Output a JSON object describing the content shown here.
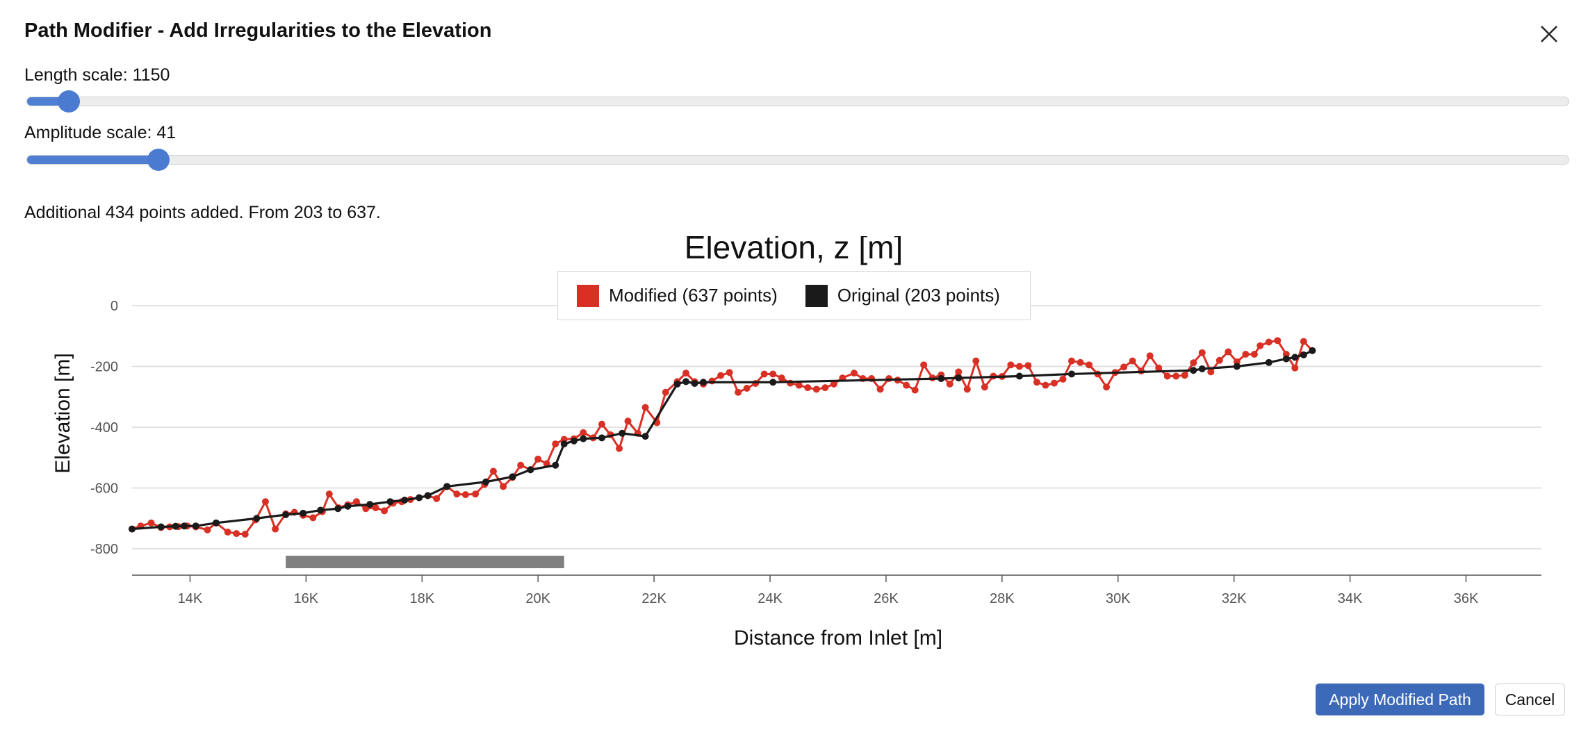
{
  "dialog": {
    "title": "Path Modifier - Add Irregularities to the Elevation",
    "close_icon": "close-icon"
  },
  "sliders": {
    "length_label": "Length scale: 1150",
    "length_fraction": 0.027,
    "amplitude_label": "Amplitude scale: 41",
    "amplitude_fraction": 0.085
  },
  "info": {
    "text": "Additional 434 points added. From 203 to 637."
  },
  "buttons": {
    "apply_label": "Apply Modified Path",
    "cancel_label": "Cancel"
  },
  "colors": {
    "modified": "#d93025",
    "original": "#1a1a1a",
    "accent": "#3d6ab8",
    "navigator": "#808080"
  },
  "chart_data": {
    "type": "line",
    "title": "Elevation, z [m]",
    "xlabel": "Distance from Inlet [m]",
    "ylabel": "Elevation [m]",
    "xlim": [
      13000,
      37300
    ],
    "ylim": [
      -800,
      0
    ],
    "x_ticks": [
      14000,
      16000,
      18000,
      20000,
      22000,
      24000,
      26000,
      28000,
      30000,
      32000,
      34000,
      36000
    ],
    "x_tick_labels": [
      "14K",
      "16K",
      "18K",
      "20K",
      "22K",
      "24K",
      "26K",
      "28K",
      "30K",
      "32K",
      "34K",
      "36K"
    ],
    "y_ticks": [
      0,
      -200,
      -400,
      -600,
      -800
    ],
    "y_tick_labels": [
      "0",
      "-200",
      "-400",
      "-600",
      "-800"
    ],
    "grid": true,
    "legend_position": "top-center",
    "navigator_range": [
      15650,
      20450
    ],
    "series": [
      {
        "name": "Modified (637 points)",
        "color": "#d93025",
        "points": [
          [
            13000,
            -735
          ],
          [
            13150,
            -725
          ],
          [
            13330,
            -715
          ],
          [
            13500,
            -730
          ],
          [
            13650,
            -728
          ],
          [
            13800,
            -727
          ],
          [
            13950,
            -725
          ],
          [
            14100,
            -728
          ],
          [
            14300,
            -738
          ],
          [
            14450,
            -715
          ],
          [
            14650,
            -745
          ],
          [
            14800,
            -750
          ],
          [
            14950,
            -752
          ],
          [
            15130,
            -705
          ],
          [
            15300,
            -645
          ],
          [
            15470,
            -735
          ],
          [
            15650,
            -685
          ],
          [
            15800,
            -680
          ],
          [
            15950,
            -690
          ],
          [
            16120,
            -698
          ],
          [
            16280,
            -678
          ],
          [
            16400,
            -620
          ],
          [
            16560,
            -665
          ],
          [
            16720,
            -655
          ],
          [
            16870,
            -645
          ],
          [
            17030,
            -668
          ],
          [
            17200,
            -665
          ],
          [
            17350,
            -675
          ],
          [
            17500,
            -650
          ],
          [
            17650,
            -645
          ],
          [
            17800,
            -638
          ],
          [
            17950,
            -632
          ],
          [
            18100,
            -625
          ],
          [
            18250,
            -635
          ],
          [
            18430,
            -595
          ],
          [
            18600,
            -620
          ],
          [
            18750,
            -622
          ],
          [
            18920,
            -620
          ],
          [
            19080,
            -588
          ],
          [
            19230,
            -545
          ],
          [
            19400,
            -595
          ],
          [
            19560,
            -565
          ],
          [
            19700,
            -525
          ],
          [
            19870,
            -540
          ],
          [
            20000,
            -505
          ],
          [
            20150,
            -520
          ],
          [
            20300,
            -455
          ],
          [
            20450,
            -440
          ],
          [
            20620,
            -438
          ],
          [
            20780,
            -418
          ],
          [
            20950,
            -435
          ],
          [
            21100,
            -390
          ],
          [
            21250,
            -425
          ],
          [
            21400,
            -470
          ],
          [
            21550,
            -380
          ],
          [
            21720,
            -420
          ],
          [
            21850,
            -335
          ],
          [
            22050,
            -385
          ],
          [
            22200,
            -285
          ],
          [
            22400,
            -250
          ],
          [
            22550,
            -222
          ],
          [
            22700,
            -250
          ],
          [
            22850,
            -258
          ],
          [
            23000,
            -248
          ],
          [
            23150,
            -230
          ],
          [
            23300,
            -220
          ],
          [
            23450,
            -285
          ],
          [
            23600,
            -272
          ],
          [
            23750,
            -256
          ],
          [
            23900,
            -225
          ],
          [
            24050,
            -225
          ],
          [
            24200,
            -238
          ],
          [
            24350,
            -255
          ],
          [
            24500,
            -262
          ],
          [
            24650,
            -270
          ],
          [
            24800,
            -275
          ],
          [
            24950,
            -270
          ],
          [
            25100,
            -258
          ],
          [
            25250,
            -238
          ],
          [
            25450,
            -222
          ],
          [
            25600,
            -240
          ],
          [
            25750,
            -240
          ],
          [
            25900,
            -275
          ],
          [
            26050,
            -240
          ],
          [
            26200,
            -245
          ],
          [
            26350,
            -262
          ],
          [
            26500,
            -278
          ],
          [
            26650,
            -195
          ],
          [
            26800,
            -238
          ],
          [
            26950,
            -228
          ],
          [
            27100,
            -258
          ],
          [
            27250,
            -218
          ],
          [
            27400,
            -275
          ],
          [
            27550,
            -182
          ],
          [
            27700,
            -268
          ],
          [
            27850,
            -232
          ],
          [
            28000,
            -233
          ],
          [
            28150,
            -195
          ],
          [
            28300,
            -200
          ],
          [
            28450,
            -197
          ],
          [
            28600,
            -252
          ],
          [
            28750,
            -262
          ],
          [
            28900,
            -255
          ],
          [
            29050,
            -242
          ],
          [
            29200,
            -182
          ],
          [
            29350,
            -187
          ],
          [
            29500,
            -195
          ],
          [
            29650,
            -225
          ],
          [
            29800,
            -268
          ],
          [
            29950,
            -220
          ],
          [
            30100,
            -202
          ],
          [
            30250,
            -182
          ],
          [
            30400,
            -215
          ],
          [
            30550,
            -165
          ],
          [
            30700,
            -205
          ],
          [
            30850,
            -232
          ],
          [
            31000,
            -232
          ],
          [
            31150,
            -229
          ],
          [
            31300,
            -188
          ],
          [
            31450,
            -155
          ],
          [
            31600,
            -218
          ],
          [
            31750,
            -180
          ],
          [
            31900,
            -152
          ],
          [
            32050,
            -185
          ],
          [
            32200,
            -160
          ],
          [
            32350,
            -160
          ],
          [
            32450,
            -132
          ],
          [
            32600,
            -120
          ],
          [
            32750,
            -115
          ],
          [
            32900,
            -160
          ],
          [
            33050,
            -205
          ],
          [
            33200,
            -118
          ],
          [
            33350,
            -148
          ]
        ]
      },
      {
        "name": "Original (203 points)",
        "color": "#1a1a1a",
        "points": [
          [
            13000,
            -735
          ],
          [
            13500,
            -728
          ],
          [
            13750,
            -726
          ],
          [
            13900,
            -725
          ],
          [
            14100,
            -725
          ],
          [
            14450,
            -715
          ],
          [
            15150,
            -700
          ],
          [
            15650,
            -688
          ],
          [
            15950,
            -683
          ],
          [
            16250,
            -673
          ],
          [
            16550,
            -668
          ],
          [
            16720,
            -660
          ],
          [
            17100,
            -654
          ],
          [
            17450,
            -645
          ],
          [
            17700,
            -640
          ],
          [
            17950,
            -632
          ],
          [
            18100,
            -625
          ],
          [
            18430,
            -595
          ],
          [
            19100,
            -580
          ],
          [
            19560,
            -563
          ],
          [
            19870,
            -540
          ],
          [
            20300,
            -525
          ],
          [
            20450,
            -455
          ],
          [
            20620,
            -445
          ],
          [
            20780,
            -438
          ],
          [
            21100,
            -435
          ],
          [
            21450,
            -420
          ],
          [
            21850,
            -430
          ],
          [
            22400,
            -258
          ],
          [
            22550,
            -250
          ],
          [
            22700,
            -256
          ],
          [
            22850,
            -252
          ],
          [
            24050,
            -252
          ],
          [
            26950,
            -240
          ],
          [
            27250,
            -238
          ],
          [
            28300,
            -232
          ],
          [
            29200,
            -225
          ],
          [
            31300,
            -213
          ],
          [
            31450,
            -208
          ],
          [
            32050,
            -200
          ],
          [
            32600,
            -187
          ],
          [
            32900,
            -175
          ],
          [
            33050,
            -170
          ],
          [
            33200,
            -162
          ],
          [
            33350,
            -148
          ]
        ]
      }
    ]
  }
}
